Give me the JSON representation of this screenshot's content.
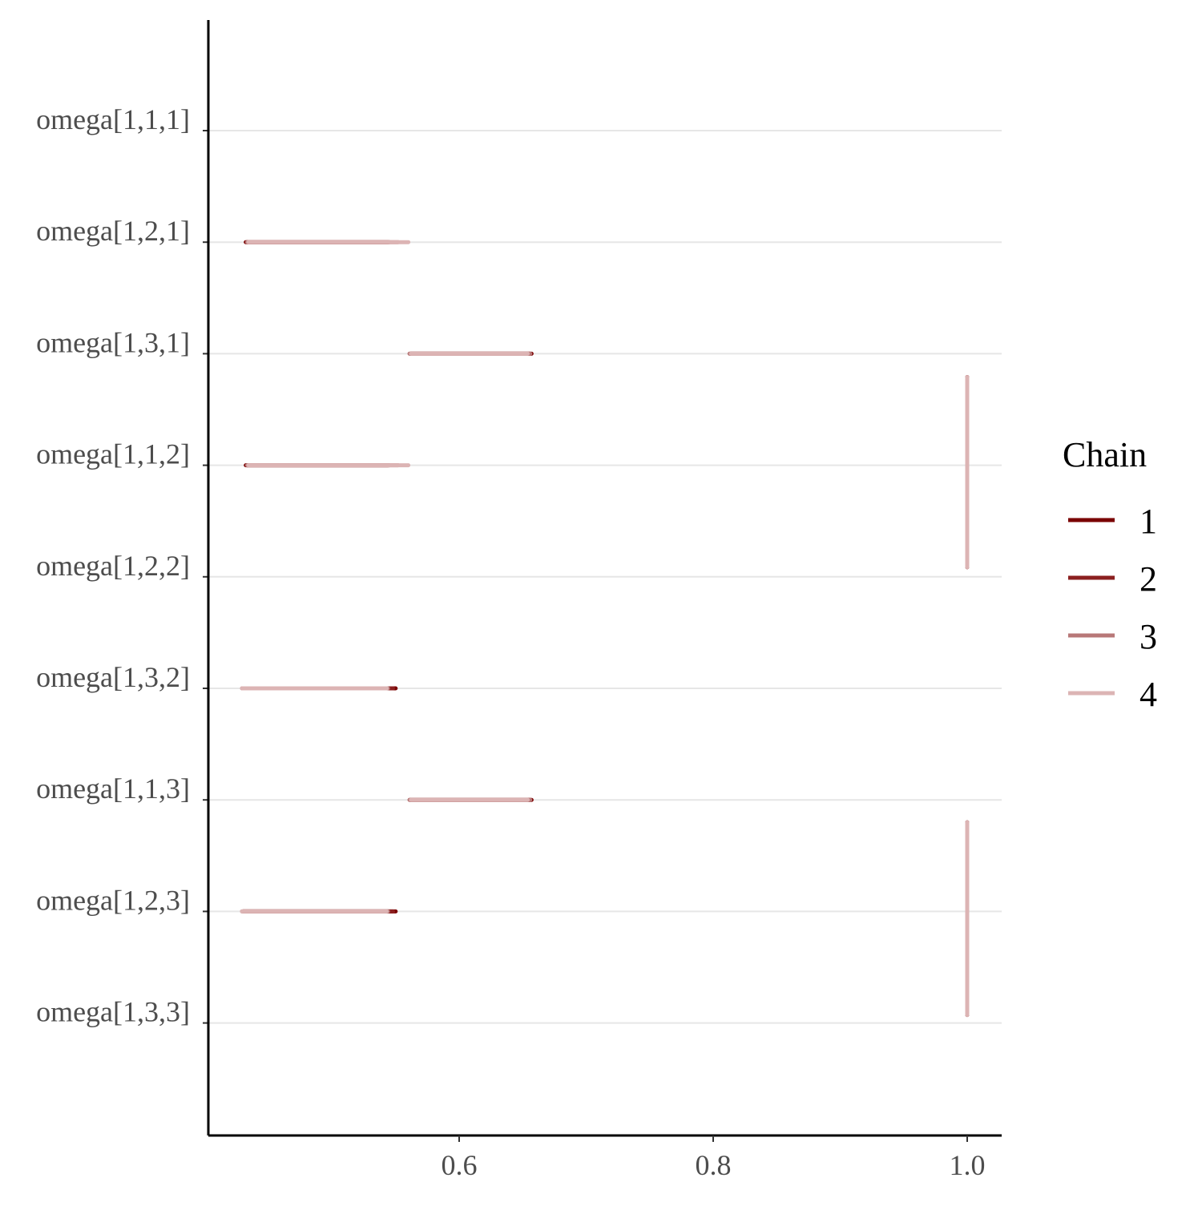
{
  "chart_data": {
    "type": "interval",
    "title": "",
    "xlabel": "",
    "ylabel": "",
    "xlim": [
      0.4,
      1.03
    ],
    "x_ticks": [
      0.6,
      0.8,
      1.0
    ],
    "x_tick_labels": [
      "0.6",
      "0.8",
      "1.0"
    ],
    "grid": "horizontal major lines",
    "legend_position": "right",
    "parameters": [
      "omega[1,1,1]",
      "omega[1,2,1]",
      "omega[1,3,1]",
      "omega[1,1,2]",
      "omega[1,2,2]",
      "omega[1,3,2]",
      "omega[1,1,3]",
      "omega[1,2,3]",
      "omega[1,3,3]"
    ],
    "legend": {
      "title": "Chain",
      "entries": [
        {
          "label": "1",
          "color": "#7a0000"
        },
        {
          "label": "2",
          "color": "#8b1f1f"
        },
        {
          "label": "3",
          "color": "#b87878"
        },
        {
          "label": "4",
          "color": "#dcb4b4"
        }
      ]
    },
    "series": [
      {
        "name": "1",
        "color": "#7a0000",
        "intervals": [
          {
            "param": "omega[1,2,1]",
            "low": 0.432,
            "high": 0.544
          },
          {
            "param": "omega[1,3,1]",
            "low": 0.562,
            "high": 0.657
          },
          {
            "param": "omega[1,1,2]",
            "low": 0.432,
            "high": 0.544
          },
          {
            "param": "omega[1,3,2]",
            "low": 0.43,
            "high": 0.55
          },
          {
            "param": "omega[1,1,3]",
            "low": 0.562,
            "high": 0.657
          },
          {
            "param": "omega[1,2,3]",
            "low": 0.43,
            "high": 0.55
          }
        ]
      },
      {
        "name": "2",
        "color": "#8b1f1f",
        "intervals": [
          {
            "param": "omega[1,2,1]",
            "low": 0.433,
            "high": 0.545
          },
          {
            "param": "omega[1,3,1]",
            "low": 0.561,
            "high": 0.656
          },
          {
            "param": "omega[1,1,2]",
            "low": 0.433,
            "high": 0.545
          },
          {
            "param": "omega[1,3,2]",
            "low": 0.43,
            "high": 0.548
          },
          {
            "param": "omega[1,1,3]",
            "low": 0.561,
            "high": 0.656
          },
          {
            "param": "omega[1,2,3]",
            "low": 0.43,
            "high": 0.548
          }
        ]
      },
      {
        "name": "3",
        "color": "#b87878",
        "intervals": [
          {
            "param": "omega[1,2,1]",
            "low": 0.433,
            "high": 0.552
          },
          {
            "param": "omega[1,3,1]",
            "low": 0.561,
            "high": 0.656
          },
          {
            "param": "omega[1,1,2]",
            "low": 0.433,
            "high": 0.552
          },
          {
            "param": "omega[1,3,2]",
            "low": 0.429,
            "high": 0.544
          },
          {
            "param": "omega[1,1,3]",
            "low": 0.561,
            "high": 0.656
          },
          {
            "param": "omega[1,2,3]",
            "low": 0.429,
            "high": 0.544
          }
        ]
      },
      {
        "name": "4",
        "color": "#dcb4b4",
        "intervals": [
          {
            "param": "omega[1,2,1]",
            "low": 0.434,
            "high": 0.56
          },
          {
            "param": "omega[1,3,1]",
            "low": 0.562,
            "high": 0.654
          },
          {
            "param": "omega[1,1,2]",
            "low": 0.434,
            "high": 0.56
          },
          {
            "param": "omega[1,3,2]",
            "low": 0.429,
            "high": 0.543
          },
          {
            "param": "omega[1,1,3]",
            "low": 0.562,
            "high": 0.654
          },
          {
            "param": "omega[1,2,3]",
            "low": 0.429,
            "high": 0.543
          }
        ]
      }
    ],
    "constant_params": [
      {
        "params": [
          "omega[1,1,1]",
          "omega[1,2,2]",
          "omega[1,3,3]"
        ],
        "value": 1.0,
        "note": "vertical segment spanning omega[1,1,2] to omega[1,3,3]"
      }
    ]
  }
}
